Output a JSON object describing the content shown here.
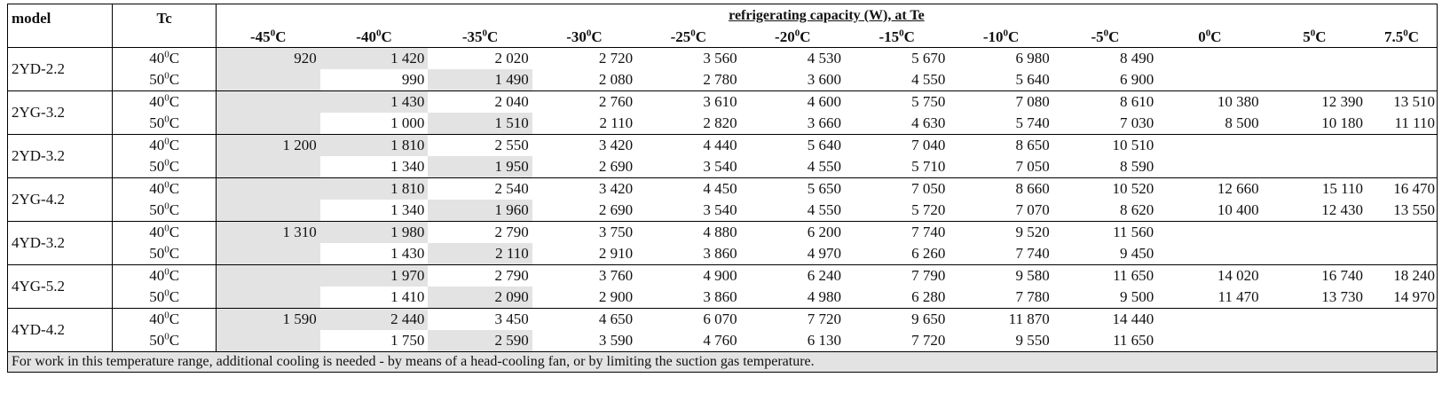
{
  "header": {
    "model": "model",
    "tc": "Tc",
    "capacity": "refrigerating capacity (W), at Te",
    "columns": [
      "-45⁰C",
      "-40⁰C",
      "-35⁰C",
      "-30⁰C",
      "-25⁰C",
      "-20⁰C",
      "-15⁰C",
      "-10⁰C",
      "-5⁰C",
      "0⁰C",
      "5⁰C",
      "7.5⁰C"
    ]
  },
  "tc_values": [
    "40⁰C",
    "50⁰C"
  ],
  "models": [
    {
      "name": "2YD-2.2",
      "rows": [
        [
          "920",
          "1 420",
          "2 020",
          "2 720",
          "3 560",
          "4 530",
          "5 670",
          "6 980",
          "8 490",
          "",
          "",
          ""
        ],
        [
          "",
          "990",
          "1 490",
          "2 080",
          "2 780",
          "3 600",
          "4 550",
          "5 640",
          "6 900",
          "",
          "",
          ""
        ]
      ]
    },
    {
      "name": "2YG-3.2",
      "rows": [
        [
          "",
          "1 430",
          "2 040",
          "2 760",
          "3 610",
          "4 600",
          "5 750",
          "7 080",
          "8 610",
          "10 380",
          "12 390",
          "13 510"
        ],
        [
          "",
          "1 000",
          "1 510",
          "2 110",
          "2 820",
          "3 660",
          "4 630",
          "5 740",
          "7 030",
          "8 500",
          "10 180",
          "11 110"
        ]
      ]
    },
    {
      "name": "2YD-3.2",
      "rows": [
        [
          "1 200",
          "1 810",
          "2 550",
          "3 420",
          "4 440",
          "5 640",
          "7 040",
          "8 650",
          "10 510",
          "",
          "",
          ""
        ],
        [
          "",
          "1 340",
          "1 950",
          "2 690",
          "3 540",
          "4 550",
          "5 710",
          "7 050",
          "8 590",
          "",
          "",
          ""
        ]
      ]
    },
    {
      "name": "2YG-4.2",
      "rows": [
        [
          "",
          "1 810",
          "2 540",
          "3 420",
          "4 450",
          "5 650",
          "7 050",
          "8 660",
          "10 520",
          "12 660",
          "15 110",
          "16 470"
        ],
        [
          "",
          "1 340",
          "1 960",
          "2 690",
          "3 540",
          "4 550",
          "5 720",
          "7 070",
          "8 620",
          "10 400",
          "12 430",
          "13 550"
        ]
      ]
    },
    {
      "name": "4YD-3.2",
      "rows": [
        [
          "1 310",
          "1 980",
          "2 790",
          "3 750",
          "4 880",
          "6 200",
          "7 740",
          "9 520",
          "11 560",
          "",
          "",
          ""
        ],
        [
          "",
          "1 430",
          "2 110",
          "2 910",
          "3 860",
          "4 970",
          "6 260",
          "7 740",
          "9 450",
          "",
          "",
          ""
        ]
      ]
    },
    {
      "name": "4YG-5.2",
      "rows": [
        [
          "",
          "1 970",
          "2 790",
          "3 760",
          "4 900",
          "6 240",
          "7 790",
          "9 580",
          "11 650",
          "14 020",
          "16 740",
          "18 240"
        ],
        [
          "",
          "1 410",
          "2 090",
          "2 900",
          "3 860",
          "4 980",
          "6 280",
          "7 780",
          "9 500",
          "11 470",
          "13 730",
          "14 970"
        ]
      ]
    },
    {
      "name": "4YD-4.2",
      "rows": [
        [
          "1 590",
          "2 440",
          "3 450",
          "4 650",
          "6 070",
          "7 720",
          "9 650",
          "11 870",
          "14 440",
          "",
          "",
          ""
        ],
        [
          "",
          "1 750",
          "2 590",
          "3 590",
          "4 760",
          "6 130",
          "7 720",
          "9 550",
          "11 650",
          "",
          "",
          ""
        ]
      ]
    }
  ],
  "note": "For work in this temperature range, additional cooling is needed - by means of a head-cooling fan, or by limiting the suction gas temperature.",
  "colors": {
    "shade": "#e3e3e3",
    "border": "#000000"
  }
}
